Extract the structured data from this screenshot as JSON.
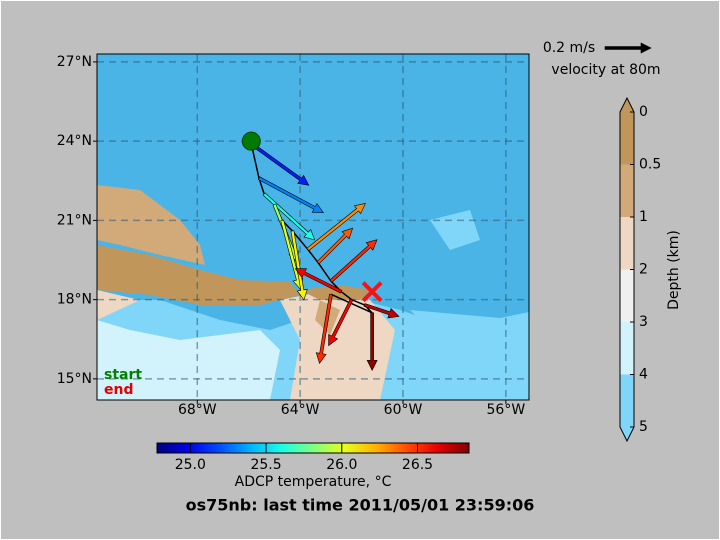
{
  "chart_data": {
    "type": "vector-map",
    "title": "os75nb: last time 2011/05/01 23:59:06",
    "xlim": [
      -71.9,
      -55.1
    ],
    "ylim": [
      14.2,
      27.3
    ],
    "xticks": [
      {
        "value": -68,
        "label": "68°W"
      },
      {
        "value": -64,
        "label": "64°W"
      },
      {
        "value": -60,
        "label": "60°W"
      },
      {
        "value": -56,
        "label": "56°W"
      }
    ],
    "yticks": [
      {
        "value": 15,
        "label": "15°N"
      },
      {
        "value": 18,
        "label": "18°N"
      },
      {
        "value": 21,
        "label": "21°N"
      },
      {
        "value": 24,
        "label": "24°N"
      },
      {
        "value": 27,
        "label": "27°N"
      }
    ],
    "grid": true,
    "vectors": {
      "lon": [
        -65.9,
        -65.6,
        -65.4,
        -65.0,
        -64.7,
        -64.3,
        -63.7,
        -63.3,
        -62.8,
        -62.4,
        -62.0,
        -61.5,
        -61.2,
        -62.8
      ],
      "lat": [
        23.9,
        22.6,
        22.0,
        21.6,
        21.0,
        20.6,
        19.9,
        19.4,
        18.7,
        18.3,
        18.0,
        17.8,
        17.5,
        18.2
      ],
      "u": [
        0.25,
        0.28,
        0.22,
        0.1,
        0.08,
        0.05,
        0.25,
        0.15,
        0.2,
        -0.2,
        -0.1,
        0.15,
        0.0,
        -0.05
      ],
      "v": [
        -0.18,
        -0.15,
        -0.2,
        -0.25,
        -0.3,
        -0.3,
        0.2,
        0.15,
        0.18,
        0.1,
        -0.2,
        -0.05,
        -0.25,
        -0.3
      ],
      "temperature": [
        25.1,
        25.3,
        25.6,
        25.9,
        26.0,
        26.1,
        26.3,
        26.4,
        26.5,
        26.6,
        26.6,
        26.7,
        26.8,
        26.5
      ]
    },
    "start_position": [
      -65.9,
      24.0
    ],
    "end_position": [
      -61.2,
      18.3
    ],
    "start_label": "start",
    "end_label": "end",
    "scale_arrow": {
      "value": 0.2,
      "label": "0.2 m/s"
    },
    "scale_caption": "velocity at 80m",
    "depth_colorbar": {
      "label": "Depth (km)",
      "ticks": [
        0,
        0.5,
        1,
        2,
        3,
        4,
        5
      ],
      "colors": [
        "#c0965a",
        "#d2aa7a",
        "#eed8c4",
        "#f0f0f0",
        "#d2f2fc",
        "#80d6f8"
      ]
    },
    "temperature_colorbar": {
      "label": "ADCP temperature, °C",
      "colormap": "jet",
      "lim": [
        24.78,
        26.84
      ],
      "ticks": [
        {
          "value": 25,
          "label": "25.0"
        },
        25.5,
        {
          "value": 26,
          "label": "26.0"
        },
        26.5
      ]
    }
  }
}
